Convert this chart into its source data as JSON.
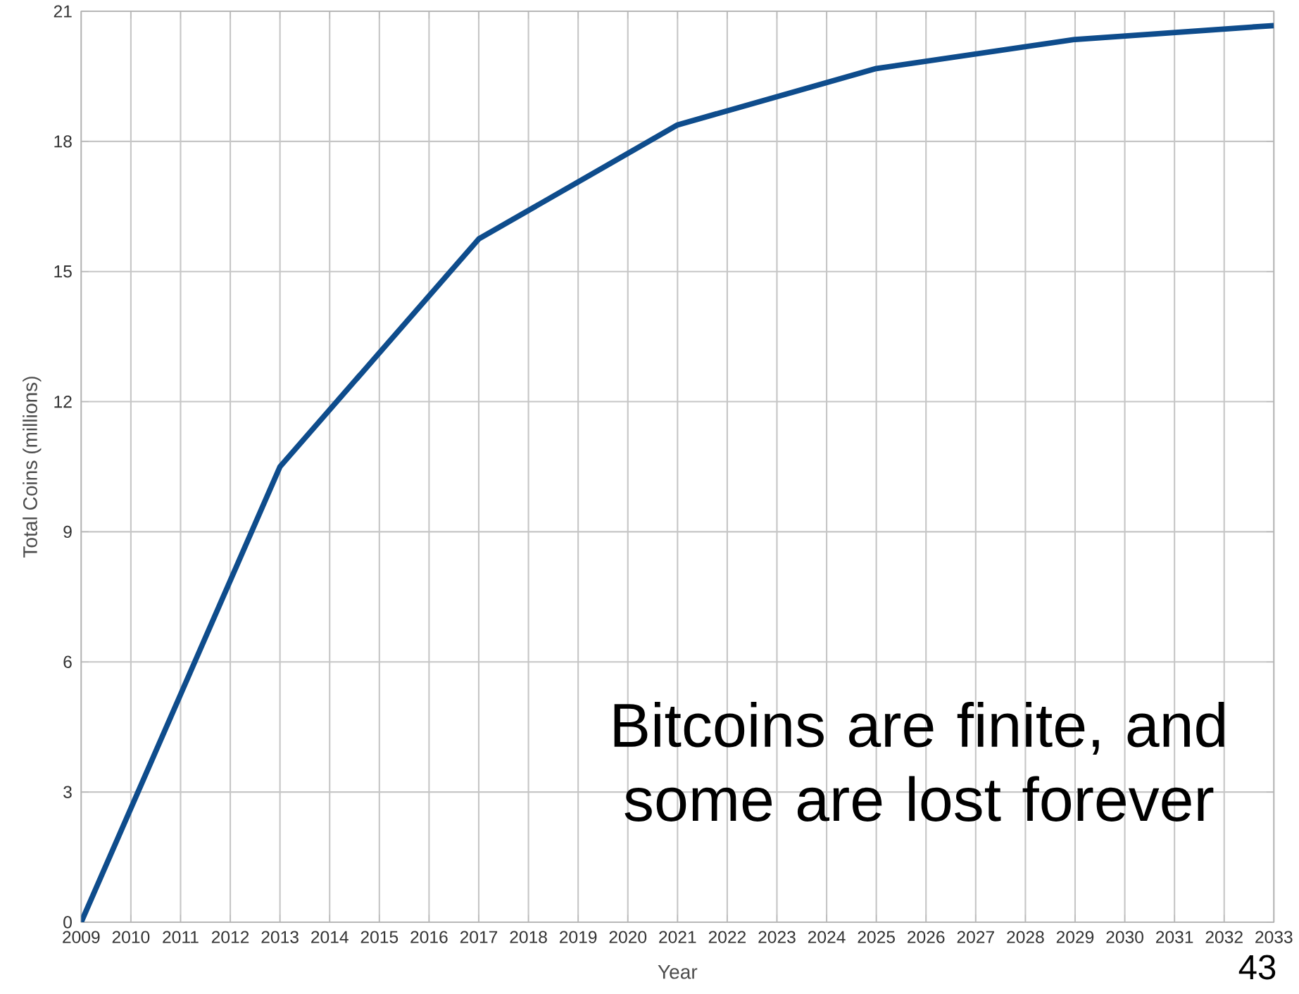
{
  "chart_data": {
    "type": "line",
    "xlabel": "Year",
    "ylabel": "Total Coins (millions)",
    "x": [
      2009,
      2013,
      2017,
      2021,
      2025,
      2029,
      2033
    ],
    "values": [
      0,
      10.5,
      15.75,
      18.38,
      19.68,
      20.35,
      20.67
    ],
    "color": "#0e4c8c",
    "xlim": [
      2009,
      2033
    ],
    "xticks": [
      2009,
      2010,
      2011,
      2012,
      2013,
      2014,
      2015,
      2016,
      2017,
      2018,
      2019,
      2020,
      2021,
      2022,
      2023,
      2024,
      2025,
      2026,
      2027,
      2028,
      2029,
      2030,
      2031,
      2032,
      2033
    ],
    "ylim": [
      0,
      21
    ],
    "yticks": [
      0,
      3,
      6,
      9,
      12,
      15,
      18,
      21
    ],
    "grid": true,
    "annotations": [
      "Bitcoins are finite, and some are lost forever",
      "43"
    ]
  }
}
